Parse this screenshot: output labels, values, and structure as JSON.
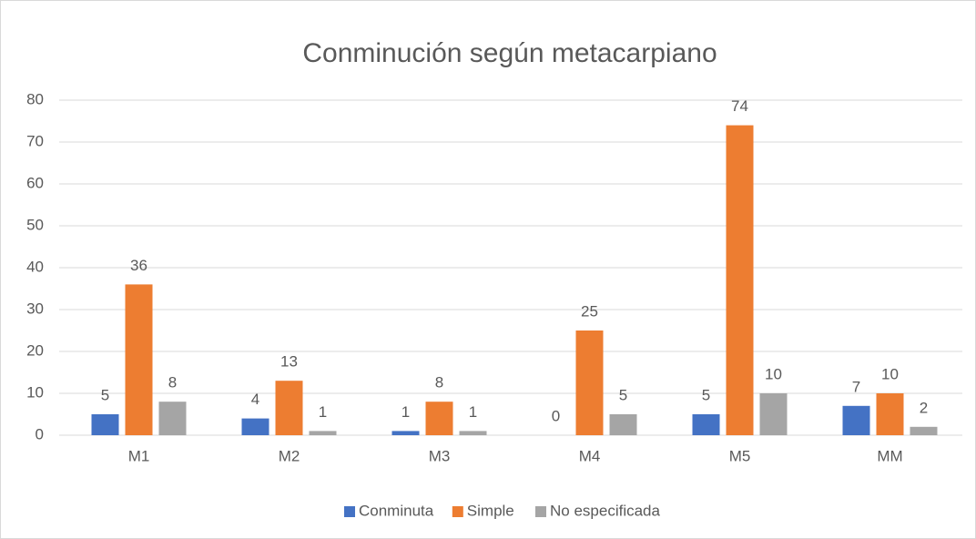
{
  "chart_data": {
    "type": "bar",
    "title": "Conminución según metacarpiano",
    "categories": [
      "M1",
      "M2",
      "M3",
      "M4",
      "M5",
      "MM"
    ],
    "series": [
      {
        "name": "Conminuta",
        "color": "#4472c4",
        "values": [
          5,
          4,
          1,
          0,
          5,
          7
        ]
      },
      {
        "name": "Simple",
        "color": "#ed7d31",
        "values": [
          36,
          13,
          8,
          25,
          74,
          10
        ]
      },
      {
        "name": "No especificada",
        "color": "#a5a5a5",
        "values": [
          8,
          1,
          1,
          5,
          10,
          2
        ]
      }
    ],
    "ylim": [
      0,
      80
    ],
    "yticks": [
      0,
      10,
      20,
      30,
      40,
      50,
      60,
      70,
      80
    ],
    "grid": true,
    "legend": "bottom"
  }
}
